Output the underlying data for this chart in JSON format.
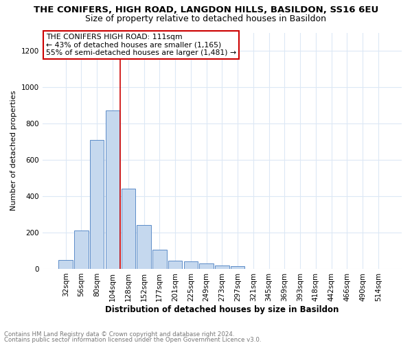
{
  "title": "THE CONIFERS, HIGH ROAD, LANGDON HILLS, BASILDON, SS16 6EU",
  "subtitle": "Size of property relative to detached houses in Basildon",
  "xlabel": "Distribution of detached houses by size in Basildon",
  "ylabel": "Number of detached properties",
  "bar_color": "#c5d8ee",
  "bar_edge_color": "#5b8cc8",
  "categories": [
    "32sqm",
    "56sqm",
    "80sqm",
    "104sqm",
    "128sqm",
    "152sqm",
    "177sqm",
    "201sqm",
    "225sqm",
    "249sqm",
    "273sqm",
    "297sqm",
    "321sqm",
    "345sqm",
    "369sqm",
    "393sqm",
    "418sqm",
    "442sqm",
    "466sqm",
    "490sqm",
    "514sqm"
  ],
  "values": [
    50,
    210,
    710,
    870,
    440,
    240,
    105,
    45,
    40,
    30,
    20,
    15,
    0,
    0,
    0,
    0,
    0,
    0,
    0,
    0,
    0
  ],
  "ylim": [
    0,
    1300
  ],
  "yticks": [
    0,
    200,
    400,
    600,
    800,
    1000,
    1200
  ],
  "vline_x_index": 3.5,
  "annotation_box_text": "THE CONIFERS HIGH ROAD: 111sqm\n← 43% of detached houses are smaller (1,165)\n55% of semi-detached houses are larger (1,481) →",
  "footnote1": "Contains HM Land Registry data © Crown copyright and database right 2024.",
  "footnote2": "Contains public sector information licensed under the Open Government Licence v3.0.",
  "grid_color": "#dce8f5",
  "annotation_box_color": "#ffffff",
  "annotation_box_edge_color": "#cc0000",
  "vline_color": "#cc0000",
  "title_fontsize": 9.5,
  "subtitle_fontsize": 9,
  "tick_fontsize": 7.5,
  "ylabel_fontsize": 8,
  "xlabel_fontsize": 8.5
}
